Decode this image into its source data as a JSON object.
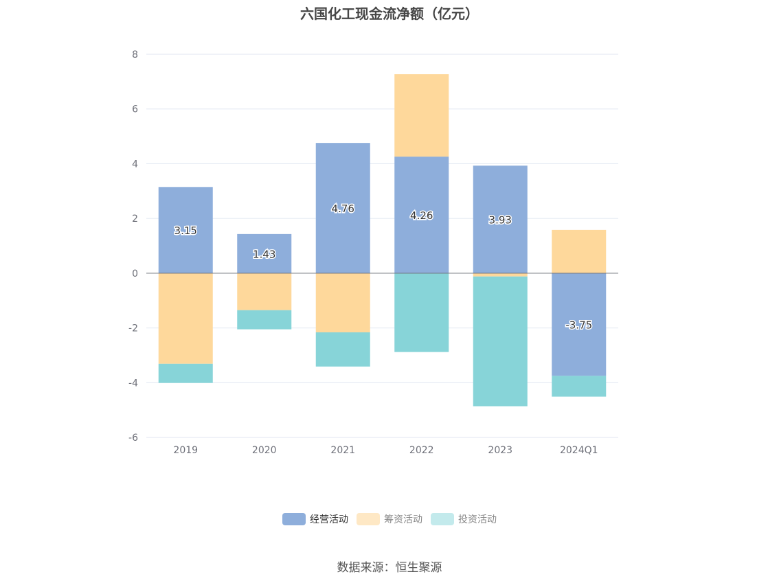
{
  "chart_data": {
    "type": "bar",
    "stacked": true,
    "title": "六国化工现金流净额（亿元）",
    "categories": [
      "2019",
      "2020",
      "2021",
      "2022",
      "2023",
      "2024Q1"
    ],
    "series": [
      {
        "name": "经营活动",
        "color": "#8eaedb",
        "values": [
          3.15,
          1.43,
          4.76,
          4.26,
          3.93,
          -3.75
        ],
        "labels_shown": true
      },
      {
        "name": "筹资活动",
        "color": "#fed89b",
        "legend_color": "#fee8c5",
        "values": [
          -3.31,
          -1.35,
          -2.16,
          3.01,
          -0.12,
          1.58
        ]
      },
      {
        "name": "投资活动",
        "color": "#87d4d8",
        "legend_color": "#c3eaec",
        "values": [
          -0.7,
          -0.7,
          -1.25,
          -2.88,
          -4.74,
          -0.76
        ]
      }
    ],
    "ylim": [
      -6,
      8
    ],
    "yticks": [
      -6,
      -4,
      -2,
      0,
      2,
      4,
      6,
      8
    ],
    "grid": true,
    "legend_position": "bottom"
  },
  "source": "数据来源：恒生聚源"
}
